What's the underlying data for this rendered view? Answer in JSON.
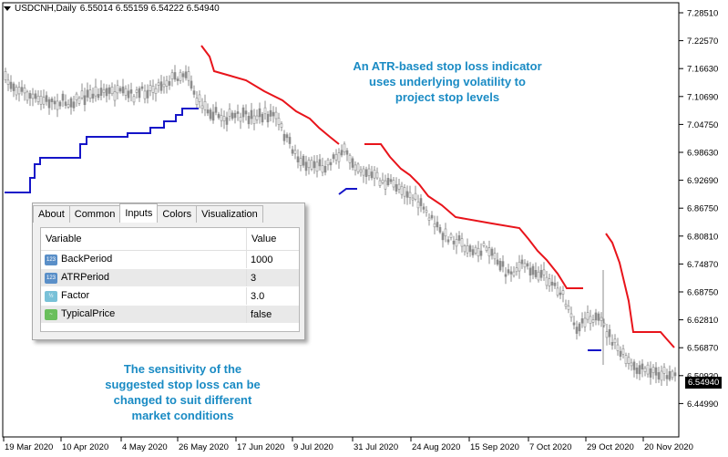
{
  "chart": {
    "symbol": "USDCNH,Daily",
    "ohlc": "6.55014 6.55159 6.54222 6.54940",
    "current_price": "6.54940",
    "y_ticks": [
      "7.28510",
      "7.22570",
      "7.16630",
      "7.10690",
      "7.04750",
      "6.98630",
      "6.92690",
      "6.86750",
      "6.80810",
      "6.74870",
      "6.68750",
      "6.62810",
      "6.56870",
      "6.50930",
      "6.44990"
    ],
    "x_ticks": [
      "19 Mar 2020",
      "10 Apr 2020",
      "4 May 2020",
      "26 May 2020",
      "17 Jun 2020",
      "9 Jul 2020",
      "31 Jul 2020",
      "24 Aug 2020",
      "15 Sep 2020",
      "7 Oct 2020",
      "29 Oct 2020",
      "20 Nov 2020"
    ],
    "colors": {
      "candles": "#8c8c8c",
      "stop_upper": "#e8141b",
      "stop_lower": "#1515c8",
      "annotation": "#1a8bc4"
    }
  },
  "annotations": {
    "top": [
      "An ATR-based stop loss indicator",
      "uses underlying volatility to",
      "project stop levels"
    ],
    "bottom": [
      "The sensitivity of the",
      "suggested stop loss can be",
      "changed to suit different",
      "market conditions"
    ]
  },
  "dialog": {
    "tabs": [
      "About",
      "Common",
      "Inputs",
      "Colors",
      "Visualization"
    ],
    "active_tab": "Inputs",
    "columns": [
      "Variable",
      "Value"
    ],
    "rows": [
      {
        "icon": "integer-icon",
        "name": "BackPeriod",
        "value": "1000"
      },
      {
        "icon": "integer-icon",
        "name": "ATRPeriod",
        "value": "3"
      },
      {
        "icon": "double-icon",
        "name": "Factor",
        "value": "3.0"
      },
      {
        "icon": "bool-icon",
        "name": "TypicalPrice",
        "value": "false"
      }
    ]
  }
}
